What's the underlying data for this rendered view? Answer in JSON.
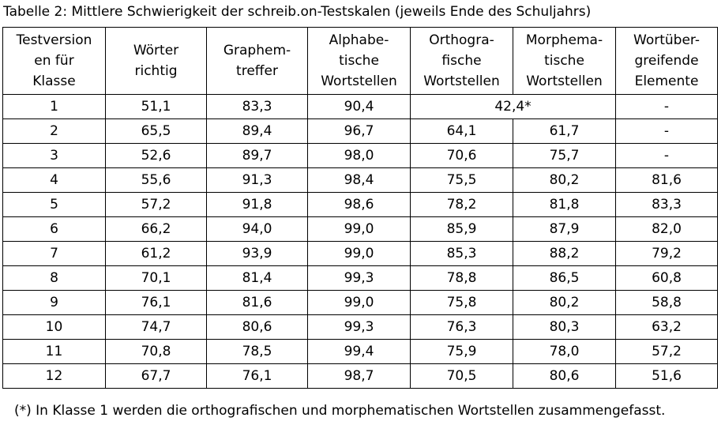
{
  "caption": "Tabelle 2: Mittlere Schwierigkeit der schreib.on-Testskalen (jeweils Ende des Schuljahrs)",
  "table": {
    "headers": [
      "Testversion\nen für\nKlasse",
      "Wörter\nrichtig",
      "Graphem-\ntreffer",
      "Alphabe-\ntische\nWortstellen",
      "Orthogra-\nfische\nWortstellen",
      "Morphema-\ntische\nWortstellen",
      "Wortüber-\ngreifende\nElemente"
    ],
    "rows": [
      [
        "1",
        "51,1",
        "83,3",
        "90,4",
        "42,4*",
        "-"
      ],
      [
        "2",
        "65,5",
        "89,4",
        "96,7",
        "64,1",
        "61,7",
        "-"
      ],
      [
        "3",
        "52,6",
        "89,7",
        "98,0",
        "70,6",
        "75,7",
        "-"
      ],
      [
        "4",
        "55,6",
        "91,3",
        "98,4",
        "75,5",
        "80,2",
        "81,6"
      ],
      [
        "5",
        "57,2",
        "91,8",
        "98,6",
        "78,2",
        "81,8",
        "83,3"
      ],
      [
        "6",
        "66,2",
        "94,0",
        "99,0",
        "85,9",
        "87,9",
        "82,0"
      ],
      [
        "7",
        "61,2",
        "93,9",
        "99,0",
        "85,3",
        "88,2",
        "79,2"
      ],
      [
        "8",
        "70,1",
        "81,4",
        "99,3",
        "78,8",
        "86,5",
        "60,8"
      ],
      [
        "9",
        "76,1",
        "81,6",
        "99,0",
        "75,8",
        "80,2",
        "58,8"
      ],
      [
        "10",
        "74,7",
        "80,6",
        "99,3",
        "76,3",
        "80,3",
        "63,2"
      ],
      [
        "11",
        "70,8",
        "78,5",
        "99,4",
        "75,9",
        "78,0",
        "57,2"
      ],
      [
        "12",
        "67,7",
        "76,1",
        "98,7",
        "70,5",
        "80,6",
        "51,6"
      ]
    ]
  },
  "footnote": "(*) In Klasse 1 werden die orthografischen und morphematischen Wortstellen zusammengefasst."
}
